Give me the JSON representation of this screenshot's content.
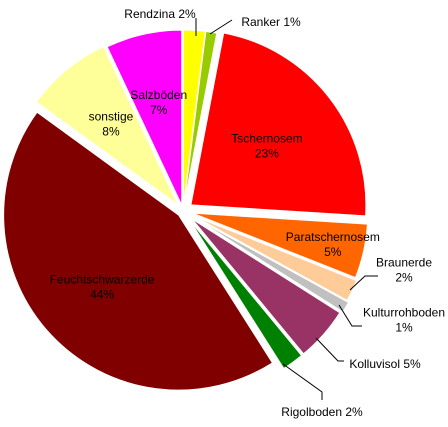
{
  "chart_data": {
    "type": "pie",
    "title": "",
    "legend": "none",
    "slices": [
      {
        "name": "Rendzina",
        "value": 2,
        "pct_label": "2%",
        "color": "#ffff00",
        "label_lines": [
          "Rendzina 2%"
        ]
      },
      {
        "name": "Ranker",
        "value": 1,
        "pct_label": "1%",
        "color": "#99cc00",
        "label_lines": [
          "Ranker 1%"
        ]
      },
      {
        "name": "Tschernosem",
        "value": 23,
        "pct_label": "23%",
        "color": "#ff0000",
        "label_lines": [
          "Tschernosem",
          "23%"
        ]
      },
      {
        "name": "Paratschernosem",
        "value": 5,
        "pct_label": "5%",
        "color": "#ff6600",
        "label_lines": [
          "Paratschernosem",
          "5%"
        ]
      },
      {
        "name": "Braunerde",
        "value": 2,
        "pct_label": "2%",
        "color": "#ffcc99",
        "label_lines": [
          "Braunerde",
          "2%"
        ]
      },
      {
        "name": "Kulturrohboden",
        "value": 1,
        "pct_label": "1%",
        "color": "#c0c0c0",
        "label_lines": [
          "Kulturrohboden",
          "1%"
        ]
      },
      {
        "name": "Kolluvisol",
        "value": 5,
        "pct_label": "5%",
        "color": "#993366",
        "label_lines": [
          "Kolluvisol 5%"
        ]
      },
      {
        "name": "Rigolboden",
        "value": 2,
        "pct_label": "2%",
        "color": "#008000",
        "label_lines": [
          "Rigolboden 2%"
        ]
      },
      {
        "name": "Feuchtschwarzerde",
        "value": 44,
        "pct_label": "44%",
        "color": "#800000",
        "label_lines": [
          "Feuchtschwarzerde",
          "44%"
        ],
        "text_color": "#ffffff"
      },
      {
        "name": "sonstige",
        "value": 8,
        "pct_label": "8%",
        "color": "#ffff99",
        "label_lines": [
          "sonstige",
          "8%"
        ]
      },
      {
        "name": "Salzböden",
        "value": 7,
        "pct_label": "7%",
        "color": "#ff00ff",
        "label_lines": [
          "Salzböden",
          "7%"
        ]
      }
    ]
  }
}
